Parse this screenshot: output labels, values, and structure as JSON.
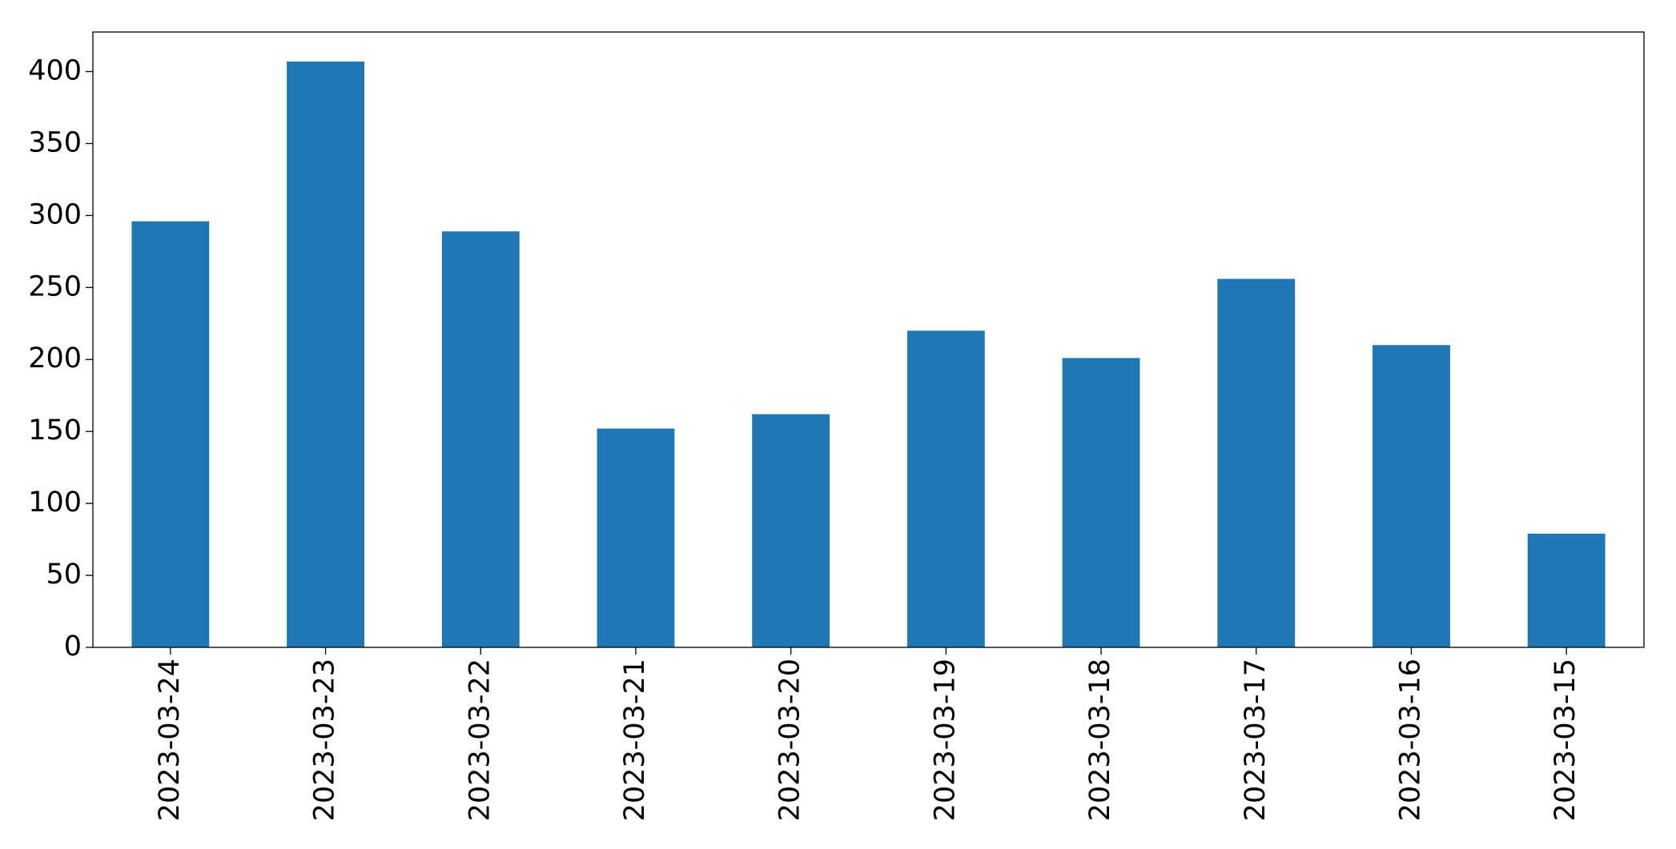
{
  "chart_data": {
    "type": "bar",
    "categories": [
      "2023-03-24",
      "2023-03-23",
      "2023-03-22",
      "2023-03-21",
      "2023-03-20",
      "2023-03-19",
      "2023-03-18",
      "2023-03-17",
      "2023-03-16",
      "2023-03-15"
    ],
    "values": [
      296,
      407,
      289,
      152,
      162,
      220,
      201,
      256,
      210,
      79
    ],
    "color": "#1f77b4",
    "ylim": [
      0,
      427.5
    ],
    "yticks": [
      0,
      50,
      100,
      150,
      200,
      250,
      300,
      350,
      400
    ],
    "grid": false
  }
}
